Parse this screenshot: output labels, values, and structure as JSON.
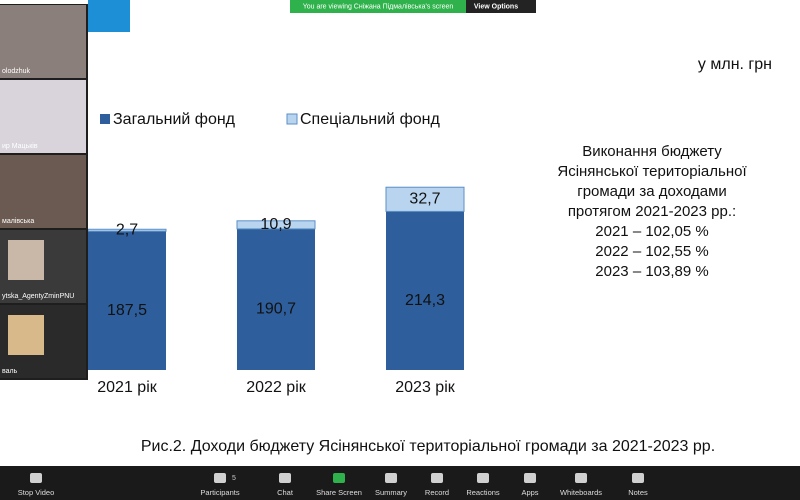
{
  "banner": {
    "text": "You are viewing Сніжана Підмалівська's screen",
    "button": "View Options"
  },
  "participants": [
    "olodzhuk",
    "ир Мацьків",
    "малівська",
    "ytska_AgentyZminPNU",
    "валь"
  ],
  "chart_data": {
    "type": "bar",
    "stacked": true,
    "unit": "у млн. грн",
    "categories": [
      "2021 рік",
      "2022 рік",
      "2023 рік"
    ],
    "series": [
      {
        "name": "Загальний фонд",
        "color": "#2e5f9c",
        "values": [
          187.5,
          190.7,
          214.3
        ],
        "value_labels": [
          "187,5",
          "190,7",
          "214,3"
        ]
      },
      {
        "name": "Спеціальний фонд",
        "color": "#b9d4ee",
        "values": [
          2.7,
          10.9,
          32.7
        ],
        "value_labels": [
          "2,7",
          "10,9",
          "32,7"
        ]
      }
    ]
  },
  "summary": {
    "lines": [
      "Виконання бюджету",
      "Ясінянської територіальної",
      "громади за доходами",
      "протягом 2021-2023 рр.:",
      "2021 – 102,05 %",
      "2022 – 102,55 %",
      "2023 – 103,89 %"
    ]
  },
  "caption": "Рис.2. Доходи бюджету Ясінянської територіальної громади за 2021-2023 рр.",
  "toolbar": {
    "participant_count": "5",
    "items": [
      "Stop Video",
      "Participants",
      "Chat",
      "Share Screen",
      "Summary",
      "Record",
      "Reactions",
      "Apps",
      "Whiteboards",
      "Notes"
    ]
  }
}
